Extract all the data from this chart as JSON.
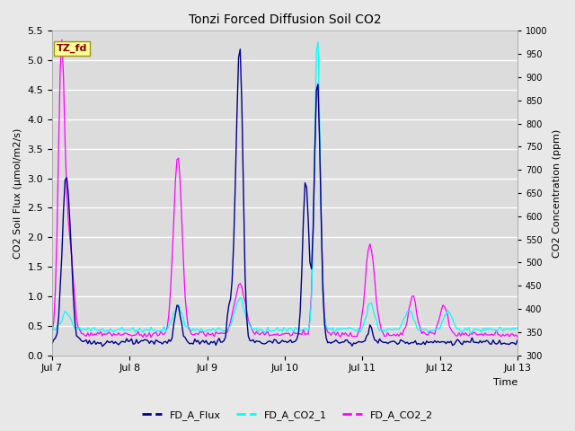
{
  "title": "Tonzi Forced Diffusion Soil CO2",
  "xlabel": "Time",
  "ylabel_left": "CO2 Soil Flux (μmol/m2/s)",
  "ylabel_right": "CO2 Concentration (ppm)",
  "ylim_left": [
    0.0,
    5.5
  ],
  "ylim_right": [
    300,
    1000
  ],
  "fig_bg_color": "#e8e8e8",
  "plot_bg_color": "#dcdcdc",
  "color_flux": "#00008B",
  "color_co2_1": "#00FFFF",
  "color_co2_2": "#FF00FF",
  "legend_label_flux": "FD_A_Flux",
  "legend_label_co2_1": "FD_A_CO2_1",
  "legend_label_co2_2": "FD_A_CO2_2",
  "tag_text": "TZ_fd",
  "tag_bg": "#FFFF99",
  "tag_fg": "#8B0000",
  "xtick_labels": [
    "Jul 7",
    "Jul 8",
    "Jul 9",
    "Jul 10",
    "Jul 11",
    "Jul 12",
    "Jul 13"
  ],
  "yticks_left": [
    0.0,
    0.5,
    1.0,
    1.5,
    2.0,
    2.5,
    3.0,
    3.5,
    4.0,
    4.5,
    5.0,
    5.5
  ],
  "yticks_right": [
    300,
    350,
    400,
    450,
    500,
    550,
    600,
    650,
    700,
    750,
    800,
    850,
    900,
    950,
    1000
  ],
  "n_days": 6,
  "n_pts": 288,
  "flux_base": 0.22,
  "flux_noise": 0.025,
  "co2_1_base": 355,
  "co2_2_base": 345
}
